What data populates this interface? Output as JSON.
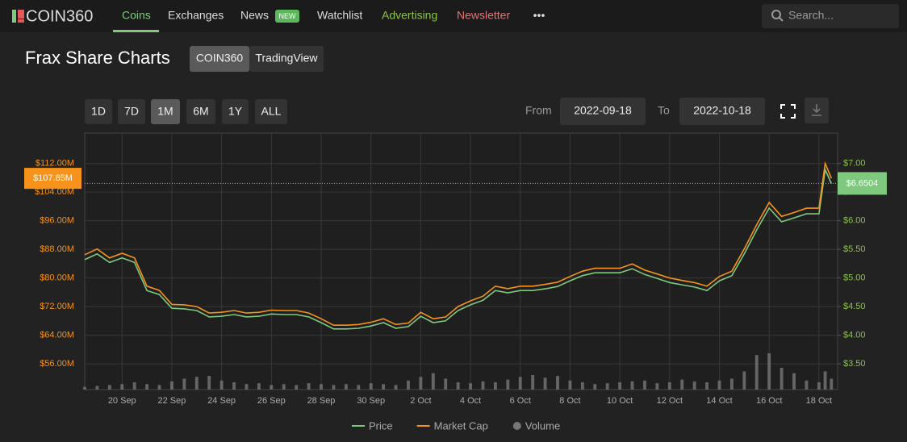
{
  "nav": {
    "logo": "COIN360",
    "items": [
      "Coins",
      "Exchanges",
      "News",
      "Watchlist",
      "Advertising",
      "Newsletter"
    ],
    "badge": "NEW",
    "more": "•••",
    "search": "Search..."
  },
  "header": {
    "title": "Frax Share Charts",
    "sources": [
      "COIN360",
      "TradingView"
    ],
    "ranges": [
      "1D",
      "7D",
      "1M",
      "6M",
      "1Y",
      "ALL"
    ],
    "from_label": "From",
    "from": "2022-09-18",
    "to_label": "To",
    "to": "2022-10-18"
  },
  "chart_data": {
    "type": "line",
    "x": [
      0.5,
      1,
      1.5,
      2,
      2.5,
      3,
      3.5,
      4,
      4.5,
      5,
      5.5,
      6,
      6.5,
      7,
      7.5,
      8,
      8.5,
      9,
      9.5,
      10,
      10.5,
      11,
      11.5,
      12,
      12.5,
      13,
      13.5,
      14,
      14.5,
      15,
      15.5,
      16,
      16.5,
      17,
      17.5,
      18,
      18.5,
      19,
      19.5,
      20,
      20.5,
      21,
      21.5,
      22,
      22.5,
      23,
      23.5,
      24,
      24.5,
      25,
      25.5,
      26,
      26.5,
      27,
      27.5,
      28,
      28.5,
      29,
      29.5,
      30,
      30.25,
      30.5
    ],
    "xlim": [
      0.5,
      30.75
    ],
    "xticks": [
      {
        "value": 2,
        "label": "20 Sep"
      },
      {
        "value": 4,
        "label": "22 Sep"
      },
      {
        "value": 6,
        "label": "24 Sep"
      },
      {
        "value": 8,
        "label": "26 Sep"
      },
      {
        "value": 10,
        "label": "28 Sep"
      },
      {
        "value": 12,
        "label": "30 Sep"
      },
      {
        "value": 14,
        "label": "2 Oct"
      },
      {
        "value": 16,
        "label": "4 Oct"
      },
      {
        "value": 18,
        "label": "6 Oct"
      },
      {
        "value": 20,
        "label": "8 Oct"
      },
      {
        "value": 22,
        "label": "10 Oct"
      },
      {
        "value": 24,
        "label": "12 Oct"
      },
      {
        "value": 26,
        "label": "14 Oct"
      },
      {
        "value": 28,
        "label": "16 Oct"
      },
      {
        "value": 30,
        "label": "18 Oct"
      }
    ],
    "ylim": [
      48.8,
      120.5
    ],
    "yticks": [
      {
        "value": 56,
        "label": "$56.00M"
      },
      {
        "value": 64,
        "label": "$64.00M"
      },
      {
        "value": 72,
        "label": "$72.00M"
      },
      {
        "value": 80,
        "label": "$80.00M"
      },
      {
        "value": 88,
        "label": "$88.00M"
      },
      {
        "value": 96,
        "label": "$96.00M"
      },
      {
        "value": 104,
        "label": "$104.00M"
      },
      {
        "value": 112,
        "label": "$112.00M"
      }
    ],
    "y2lim": [
      3.05,
      7.53
    ],
    "y2ticks": [
      {
        "value": 3.5,
        "label": "$3.50"
      },
      {
        "value": 4,
        "label": "$4.00"
      },
      {
        "value": 4.5,
        "label": "$4.50"
      },
      {
        "value": 5,
        "label": "$5.00"
      },
      {
        "value": 5.5,
        "label": "$5.50"
      },
      {
        "value": 6,
        "label": "$6.00"
      },
      {
        "value": 6.5,
        "label": "$6.50"
      },
      {
        "value": 7,
        "label": "$7.00"
      }
    ],
    "grid": true,
    "series": [
      {
        "name": "Price",
        "color": "#7fc97f",
        "axis": "y2",
        "values": [
          5.32,
          5.42,
          5.27,
          5.35,
          5.27,
          4.78,
          4.71,
          4.47,
          4.46,
          4.43,
          4.32,
          4.33,
          4.36,
          4.32,
          4.33,
          4.37,
          4.36,
          4.36,
          4.32,
          4.22,
          4.11,
          4.11,
          4.12,
          4.16,
          4.22,
          4.12,
          4.15,
          4.33,
          4.22,
          4.25,
          4.43,
          4.53,
          4.61,
          4.78,
          4.74,
          4.78,
          4.78,
          4.81,
          4.85,
          4.95,
          5.04,
          5.09,
          5.09,
          5.09,
          5.16,
          5.06,
          4.99,
          4.92,
          4.88,
          4.84,
          4.78,
          4.95,
          5.04,
          5.42,
          5.84,
          6.22,
          5.98,
          6.05,
          6.12,
          6.12,
          6.89,
          6.65
        ]
      },
      {
        "name": "Market Cap",
        "color": "#f7931a",
        "axis": "y",
        "values": [
          86.5,
          88.1,
          85.6,
          86.9,
          85.6,
          77.7,
          76.5,
          72.6,
          72.5,
          72.0,
          70.2,
          70.4,
          70.9,
          70.2,
          70.4,
          71.0,
          70.9,
          70.9,
          70.2,
          68.6,
          66.8,
          66.8,
          67.0,
          67.6,
          68.6,
          67.0,
          67.4,
          70.4,
          68.6,
          69.1,
          72.0,
          73.6,
          74.9,
          77.7,
          77.0,
          77.7,
          77.7,
          78.2,
          78.8,
          80.4,
          81.9,
          82.7,
          82.7,
          82.7,
          83.9,
          82.2,
          81.1,
          80.0,
          79.3,
          78.7,
          77.7,
          80.4,
          81.9,
          88.1,
          94.9,
          101.1,
          97.2,
          98.3,
          99.5,
          99.5,
          112.0,
          107.9
        ]
      },
      {
        "name": "Volume",
        "color": "#777777",
        "axis": "volume",
        "values": [
          3,
          4,
          5,
          6,
          8,
          6,
          5,
          9,
          12,
          14,
          15,
          10,
          8,
          6,
          7,
          5,
          6,
          5,
          7,
          6,
          5,
          6,
          5,
          7,
          6,
          5,
          10,
          14,
          18,
          12,
          8,
          7,
          9,
          8,
          11,
          14,
          16,
          13,
          15,
          10,
          8,
          6,
          7,
          8,
          9,
          10,
          7,
          8,
          11,
          9,
          8,
          10,
          12,
          20,
          38,
          40,
          24,
          18,
          10,
          8,
          20,
          12
        ]
      }
    ],
    "markers": [
      {
        "value": 107.85,
        "label": "$107.85M",
        "axis": "y"
      },
      {
        "value": 6.6504,
        "label": "$6.6504",
        "axis": "y2"
      }
    ]
  }
}
